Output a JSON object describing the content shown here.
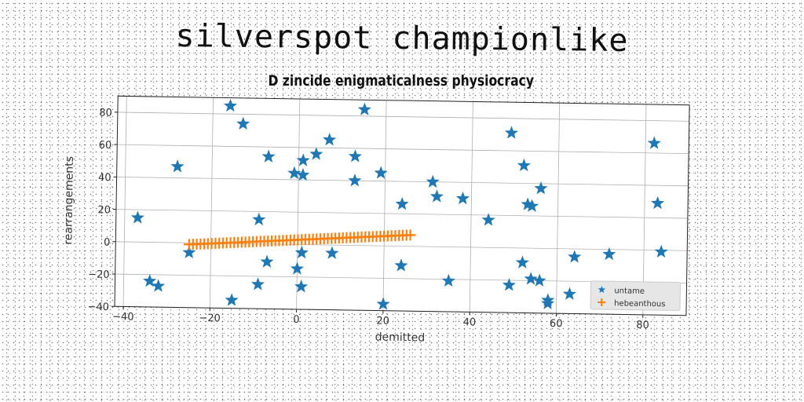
{
  "figure": {
    "suptitle": "silverspot championlike",
    "title": "D zincide enigmaticalness physiocracy"
  },
  "colors": {
    "blue": "#1f77b4",
    "orange": "#ff7f0e",
    "grid": "#b0b0b0"
  },
  "chart_data": {
    "type": "scatter",
    "xlabel": "demitted",
    "ylabel": "rearrangements",
    "xlim": [
      -42,
      90
    ],
    "ylim": [
      -40,
      90
    ],
    "xticks": [
      -40,
      -20,
      0,
      20,
      40,
      60,
      80
    ],
    "yticks": [
      -40,
      -20,
      0,
      20,
      40,
      60,
      80
    ],
    "grid": true,
    "legend_position": "lower-right",
    "series": [
      {
        "name": "untame",
        "marker": "star",
        "points": [
          [
            -37,
            15
          ],
          [
            -34,
            -24
          ],
          [
            -32,
            -27
          ],
          [
            -28,
            47
          ],
          [
            -25,
            -6
          ],
          [
            -16,
            85
          ],
          [
            -15,
            -35
          ],
          [
            -13,
            74
          ],
          [
            -9,
            15
          ],
          [
            -9,
            -25
          ],
          [
            -7,
            54
          ],
          [
            -7,
            -11
          ],
          [
            -1,
            44
          ],
          [
            0,
            -15
          ],
          [
            1,
            -26
          ],
          [
            1,
            -5
          ],
          [
            1,
            52
          ],
          [
            1,
            43
          ],
          [
            4,
            56
          ],
          [
            7,
            65
          ],
          [
            8,
            -5
          ],
          [
            13,
            40
          ],
          [
            13,
            55
          ],
          [
            15,
            84
          ],
          [
            19,
            45
          ],
          [
            20,
            -36
          ],
          [
            24,
            26
          ],
          [
            24,
            -12
          ],
          [
            31,
            40
          ],
          [
            32,
            31
          ],
          [
            35,
            -21
          ],
          [
            38,
            30
          ],
          [
            44,
            17
          ],
          [
            49,
            71
          ],
          [
            49,
            -23
          ],
          [
            52,
            51
          ],
          [
            52,
            -9
          ],
          [
            53,
            27
          ],
          [
            54,
            26
          ],
          [
            54,
            -19
          ],
          [
            56,
            37
          ],
          [
            56,
            -20
          ],
          [
            58,
            -32
          ],
          [
            58,
            -34
          ],
          [
            63,
            -28
          ],
          [
            64,
            -5
          ],
          [
            72,
            -3
          ],
          [
            82,
            66
          ],
          [
            83,
            29
          ],
          [
            84,
            -1
          ]
        ]
      },
      {
        "name": "hebeanthous",
        "marker": "plus",
        "x_range": [
          -25,
          26
        ],
        "y_range": [
          -1,
          7
        ],
        "count": 60
      }
    ]
  }
}
